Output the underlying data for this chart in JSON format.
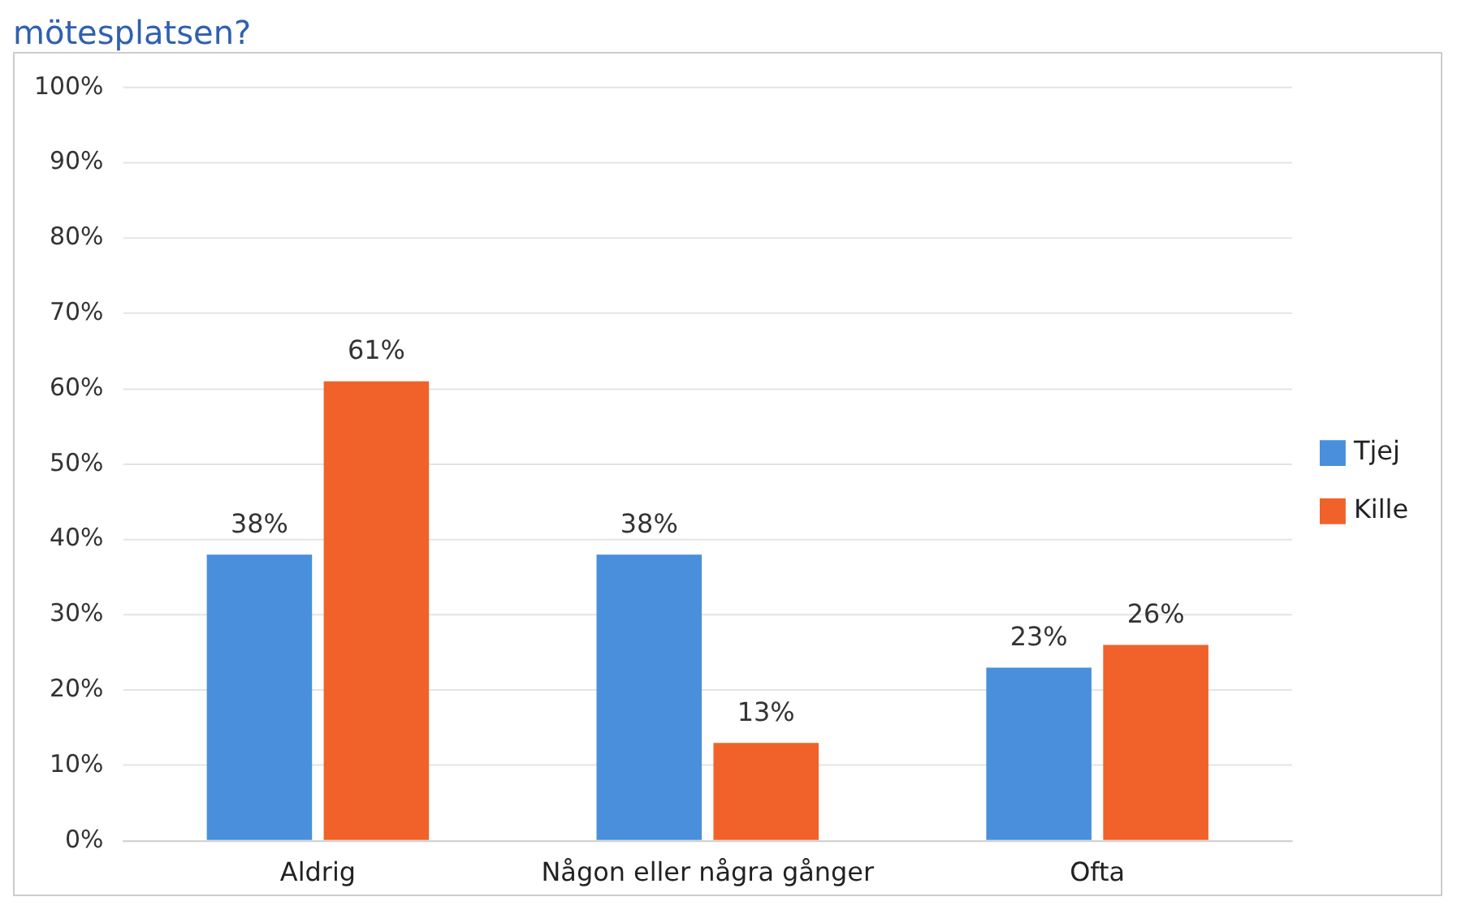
{
  "chart_data": {
    "type": "bar",
    "title": "mötesplatsen?",
    "categories": [
      "Aldrig",
      "Någon eller några gånger",
      "Ofta"
    ],
    "series": [
      {
        "name": "Tjej",
        "color": "#4a8fdc",
        "values": [
          38,
          38,
          23
        ],
        "value_labels": [
          "38%",
          "38%",
          "23%"
        ]
      },
      {
        "name": "Kille",
        "color": "#f0622a",
        "values": [
          61,
          13,
          26
        ],
        "value_labels": [
          "61%",
          "13%",
          "26%"
        ]
      }
    ],
    "ylim": [
      0,
      100
    ],
    "yticks": [
      {
        "value": 0,
        "label": "0%"
      },
      {
        "value": 10,
        "label": "10%"
      },
      {
        "value": 20,
        "label": "20%"
      },
      {
        "value": 30,
        "label": "30%"
      },
      {
        "value": 40,
        "label": "40%"
      },
      {
        "value": 50,
        "label": "50%"
      },
      {
        "value": 60,
        "label": "60%"
      },
      {
        "value": 70,
        "label": "70%"
      },
      {
        "value": 80,
        "label": "80%"
      },
      {
        "value": 90,
        "label": "90%"
      },
      {
        "value": 100,
        "label": "100%"
      }
    ],
    "grid": "y",
    "legend": "right"
  }
}
